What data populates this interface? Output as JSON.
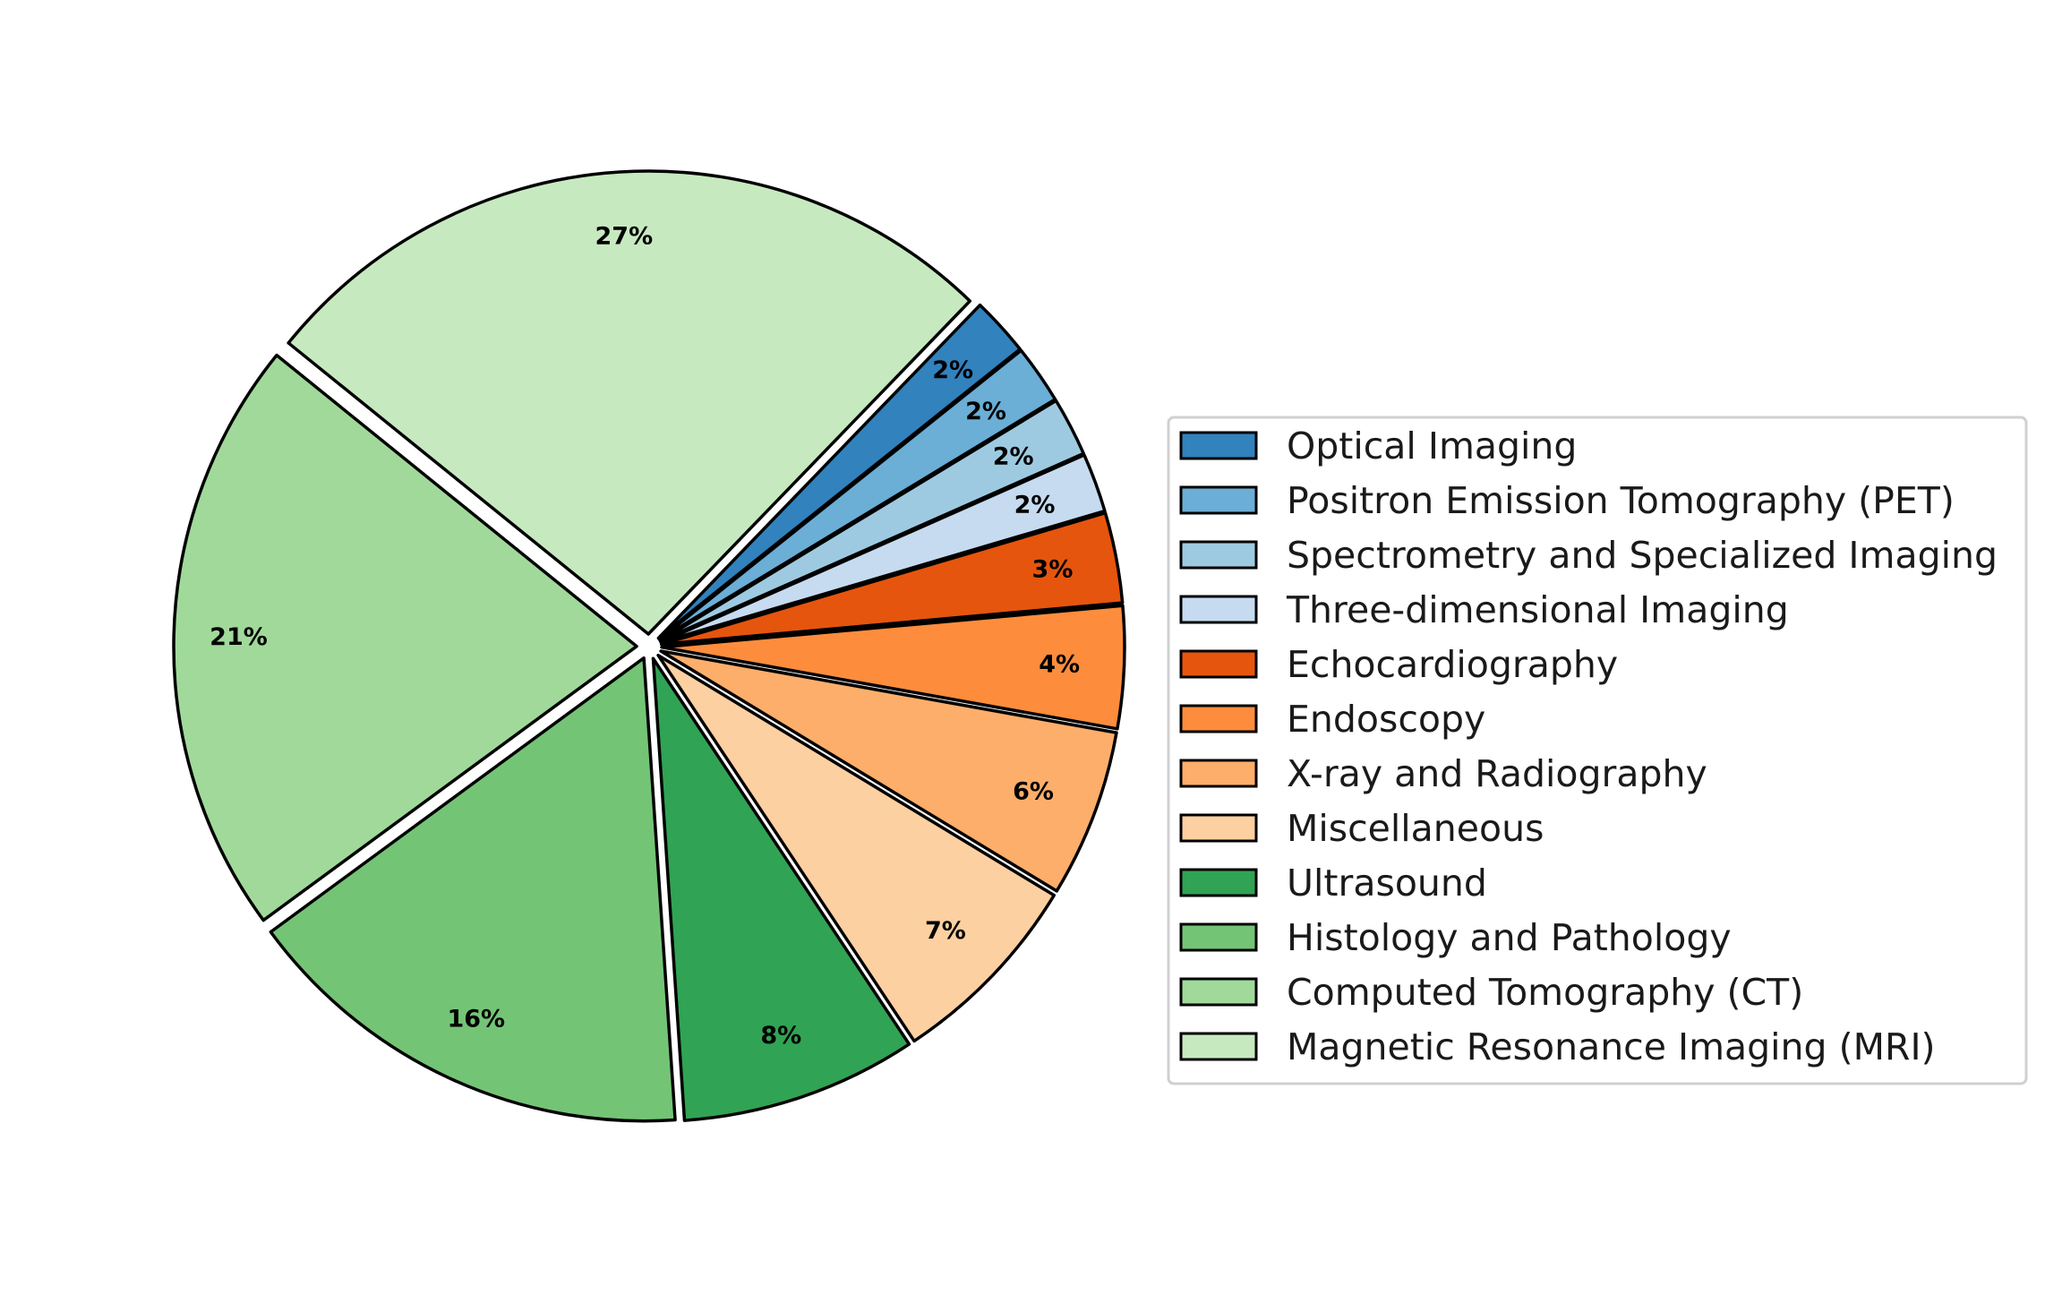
{
  "chart_data": {
    "type": "pie",
    "title": "",
    "slices": [
      {
        "label": "Optical Imaging",
        "value": 2.05,
        "pct_label": "2%",
        "color": "#3182bd"
      },
      {
        "label": "Positron Emission Tomography (PET)",
        "value": 2.05,
        "pct_label": "2%",
        "color": "#6baed6"
      },
      {
        "label": "Spectrometry and Specialized Imaging",
        "value": 2.05,
        "pct_label": "2%",
        "color": "#9ecae1"
      },
      {
        "label": "Three-dimensional Imaging",
        "value": 2.05,
        "pct_label": "2%",
        "color": "#c6dbef"
      },
      {
        "label": "Echocardiography",
        "value": 3.15,
        "pct_label": "3%",
        "color": "#e6550d"
      },
      {
        "label": "Endoscopy",
        "value": 4.25,
        "pct_label": "4%",
        "color": "#fd8d3c"
      },
      {
        "label": "X-ray and Radiography",
        "value": 5.85,
        "pct_label": "6%",
        "color": "#fdae6b"
      },
      {
        "label": "Miscellaneous",
        "value": 7.0,
        "pct_label": "7%",
        "color": "#fdd0a2"
      },
      {
        "label": "Ultrasound",
        "value": 8.25,
        "pct_label": "8%",
        "color": "#31a354"
      },
      {
        "label": "Histology and Pathology",
        "value": 16.0,
        "pct_label": "16%",
        "color": "#74c476"
      },
      {
        "label": "Computed Tomography (CT)",
        "value": 20.9,
        "pct_label": "21%",
        "color": "#a1d99b"
      },
      {
        "label": "Magnetic Resonance Imaging (MRI)",
        "value": 26.4,
        "pct_label": "27%",
        "color": "#c7e9c0"
      }
    ],
    "start_angle_deg": 46,
    "direction": "clockwise",
    "legend_position": "right"
  }
}
